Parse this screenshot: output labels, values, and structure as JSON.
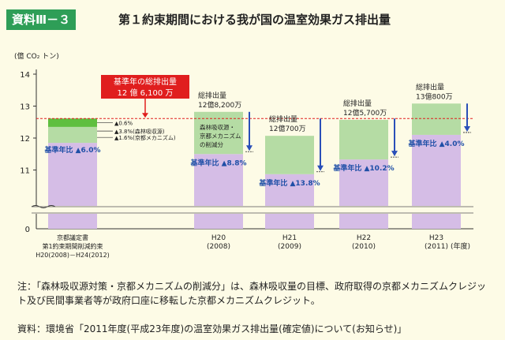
{
  "header": {
    "badge": "資料Ⅲ－３",
    "title": "第１約束期間における我が国の温室効果ガス排出量"
  },
  "colors": {
    "green_band": "#b5dca4",
    "green_top": "#5fbf3f",
    "purple": "#d5bde6",
    "baseline": "#e01e1e",
    "arrow": "#2a4fb8",
    "accent_label": "#1f4fa7"
  },
  "chart_data": {
    "type": "bar",
    "unit_label": "(億 CO₂ トン)",
    "yticks": [
      "0",
      "11",
      "12",
      "13",
      "14"
    ],
    "ylim": [
      11,
      14
    ],
    "y_axis_break": true,
    "xunit": "(年度)",
    "baseline": {
      "value": 12.61,
      "label_line1": "基準年の総排出量",
      "label_line2": "12 億 6,100 万"
    },
    "target": {
      "label_line1": "京都議定書",
      "label_line2": "第1約束期間削減約束",
      "label_line3": "H20(2008)－H24(2012)",
      "purple_top": 11.85,
      "green_top": 12.61,
      "bright_band": [
        12.35,
        12.61
      ],
      "notes": [
        "▲0.6%",
        "▲3.8%(森林吸収源)",
        "▲1.6%(京都メカニズム)"
      ],
      "ratio_label": "基準年比 ▲6.0%"
    },
    "bars": [
      {
        "cat_line1": "H20",
        "cat_line2": "(2008)",
        "total": 12.82,
        "purple_top": 11.5,
        "total_label_line1": "総排出量",
        "total_label_line2": "12億8,200万",
        "ratio_label": "基準年比 ▲8.8%",
        "inner_note": [
          "森林吸収源・",
          "京都メカニズム",
          "の削減分"
        ]
      },
      {
        "cat_line1": "H21",
        "cat_line2": "(2009)",
        "total": 12.07,
        "purple_top": 10.87,
        "total_label_line1": "総排出量",
        "total_label_line2": "12億700万",
        "ratio_label": "基準年比 ▲13.8%"
      },
      {
        "cat_line1": "H22",
        "cat_line2": "(2010)",
        "total": 12.57,
        "purple_top": 11.33,
        "total_label_line1": "総排出量",
        "total_label_line2": "12億5,700万",
        "ratio_label": "基準年比 ▲10.2%"
      },
      {
        "cat_line1": "H23",
        "cat_line2": "(2011)",
        "total": 13.08,
        "purple_top": 12.1,
        "total_label_line1": "総排出量",
        "total_label_line2": "13億800万",
        "ratio_label": "基準年比 ▲4.0%"
      }
    ]
  },
  "notes": {
    "note1": "注：「森林吸収源対策・京都メカニズムの削減分」は、森林吸収量の目標、政府取得の京都メカニズムクレジット及び民間事業者等が政府口座に移転した京都メカニズムクレジット。",
    "note2": "資料：環境省「2011年度(平成23年度)の温室効果ガス排出量(確定値)について(お知らせ)」"
  }
}
